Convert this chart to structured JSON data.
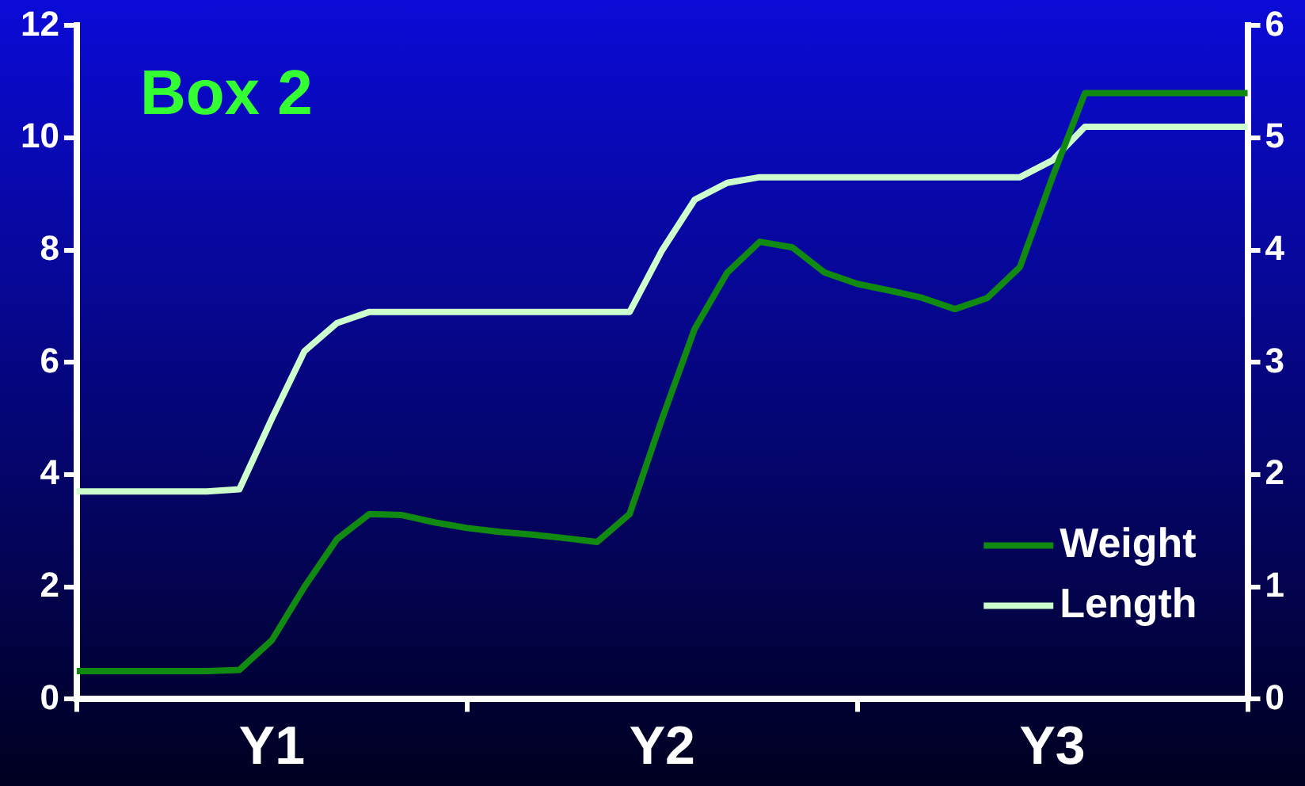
{
  "chart_data": {
    "type": "line",
    "title": "Box 2",
    "legend": "bottom right",
    "categories": [
      null,
      null,
      null,
      null,
      null,
      null,
      "Y1",
      null,
      null,
      null,
      null,
      null,
      null,
      null,
      null,
      null,
      null,
      null,
      "Y2",
      null,
      null,
      null,
      null,
      null,
      null,
      null,
      null,
      null,
      null,
      null,
      "Y3",
      null,
      null,
      null,
      null,
      null,
      null
    ],
    "ylim": [
      0,
      12
    ],
    "yticks": [
      0,
      2,
      4,
      6,
      8,
      10,
      12
    ],
    "y2lim": [
      0,
      6
    ],
    "y2ticks": [
      0,
      1,
      2,
      3,
      4,
      5,
      6
    ],
    "series": [
      {
        "name": "Weight",
        "color": "#108a10",
        "values": [
          0.5,
          0.5,
          0.5,
          0.5,
          0.5,
          0.52,
          1.05,
          2.0,
          2.85,
          3.3,
          3.28,
          3.15,
          3.05,
          2.98,
          2.93,
          2.87,
          2.8,
          3.3,
          5.0,
          6.6,
          7.6,
          8.15,
          8.05,
          7.6,
          7.4,
          7.28,
          7.15,
          6.95,
          7.15,
          7.7,
          9.3,
          10.8,
          10.8,
          10.8,
          10.8,
          10.8,
          10.8
        ]
      },
      {
        "name": "Length",
        "color": "#ccffcc",
        "axis": "y2",
        "values": [
          1.85,
          1.85,
          1.85,
          1.85,
          1.85,
          1.87,
          2.5,
          3.1,
          3.35,
          3.45,
          3.45,
          3.45,
          3.45,
          3.45,
          3.45,
          3.45,
          3.45,
          3.45,
          4.0,
          4.45,
          4.6,
          4.65,
          4.65,
          4.65,
          4.65,
          4.65,
          4.65,
          4.65,
          4.65,
          4.65,
          4.8,
          5.1,
          5.1,
          5.1,
          5.1,
          5.1,
          5.1
        ]
      }
    ]
  }
}
